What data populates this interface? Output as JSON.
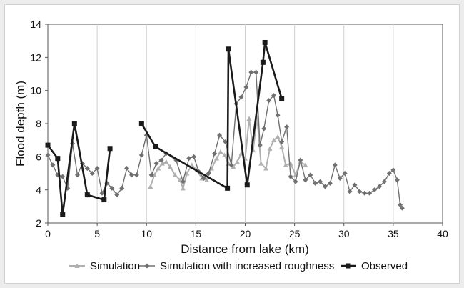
{
  "chart_data": {
    "type": "line",
    "title": "",
    "xlabel": "Distance from lake (km)",
    "ylabel": "Flood depth (m)",
    "xlim": [
      0,
      40
    ],
    "ylim": [
      2,
      14
    ],
    "xticks": [
      "0",
      "5",
      "10",
      "15",
      "20",
      "25",
      "30",
      "35",
      "40"
    ],
    "yticks": [
      "2",
      "4",
      "6",
      "8",
      "10",
      "12",
      "14"
    ],
    "grid": "vertical",
    "legend": "bottom",
    "series": [
      {
        "name": "Simulation",
        "color": "#b0b0b0",
        "marker": "triangle",
        "segments": [
          [
            [
              10.4,
              4.2
            ],
            [
              10.8,
              4.9
            ],
            [
              11.2,
              5.3
            ],
            [
              11.6,
              5.6
            ],
            [
              12.0,
              5.7
            ],
            [
              12.4,
              5.4
            ],
            [
              12.9,
              4.9
            ],
            [
              13.4,
              4.6
            ],
            [
              13.7,
              4.1
            ],
            [
              14.1,
              5.0
            ],
            [
              14.6,
              5.5
            ],
            [
              15.1,
              5.2
            ],
            [
              15.6,
              4.7
            ],
            [
              16.1,
              4.6
            ],
            [
              16.6,
              5.3
            ],
            [
              17.1,
              5.9
            ],
            [
              17.5,
              6.3
            ],
            [
              17.9,
              6.1
            ],
            [
              18.3,
              5.6
            ],
            [
              18.8,
              5.4
            ],
            [
              19.2,
              5.7
            ],
            [
              19.6,
              6.2
            ],
            [
              20.0,
              5.9
            ],
            [
              20.4,
              8.3
            ],
            [
              20.8,
              6.4
            ],
            [
              21.2,
              8.4
            ],
            [
              21.6,
              5.6
            ],
            [
              22.1,
              5.3
            ],
            [
              22.5,
              6.5
            ],
            [
              22.9,
              7.0
            ],
            [
              23.3,
              7.2
            ],
            [
              23.7,
              6.6
            ],
            [
              24.1,
              5.5
            ],
            [
              24.6,
              5.6
            ],
            [
              25.1,
              4.9
            ],
            [
              25.6,
              5.7
            ],
            [
              26.1,
              5.5
            ]
          ]
        ]
      },
      {
        "name": "Simulation with increased roughness",
        "color": "#707070",
        "marker": "diamond",
        "segments": [
          [
            [
              0.0,
              6.1
            ],
            [
              0.5,
              5.5
            ],
            [
              1.0,
              4.9
            ],
            [
              1.5,
              4.8
            ],
            [
              2.0,
              4.1
            ],
            [
              2.5,
              6.8
            ],
            [
              3.0,
              4.9
            ],
            [
              3.5,
              5.6
            ],
            [
              4.0,
              5.3
            ],
            [
              4.5,
              5.0
            ],
            [
              5.0,
              5.3
            ],
            [
              5.5,
              3.8
            ],
            [
              6.0,
              4.4
            ],
            [
              6.5,
              4.1
            ],
            [
              7.0,
              3.7
            ],
            [
              7.5,
              4.1
            ],
            [
              8.0,
              5.3
            ],
            [
              8.5,
              4.9
            ],
            [
              9.0,
              4.9
            ],
            [
              9.5,
              6.1
            ],
            [
              10.0,
              7.3
            ],
            [
              10.5,
              4.9
            ],
            [
              11.0,
              5.6
            ],
            [
              11.5,
              5.8
            ],
            [
              12.0,
              6.2
            ],
            [
              13.0,
              5.8
            ],
            [
              13.7,
              4.5
            ],
            [
              14.3,
              5.9
            ],
            [
              14.8,
              6.0
            ],
            [
              15.3,
              5.1
            ],
            [
              15.8,
              4.7
            ],
            [
              16.3,
              5.0
            ],
            [
              16.9,
              6.2
            ],
            [
              17.4,
              7.3
            ],
            [
              18.0,
              6.9
            ],
            [
              18.6,
              5.5
            ],
            [
              19.1,
              9.2
            ],
            [
              19.6,
              9.6
            ],
            [
              20.1,
              10.2
            ],
            [
              20.6,
              11.1
            ],
            [
              21.1,
              11.1
            ],
            [
              21.5,
              6.7
            ],
            [
              21.9,
              7.7
            ],
            [
              22.4,
              9.4
            ],
            [
              22.9,
              9.7
            ],
            [
              23.3,
              8.5
            ],
            [
              23.7,
              6.9
            ],
            [
              24.2,
              7.8
            ],
            [
              24.6,
              4.8
            ],
            [
              25.1,
              4.5
            ],
            [
              25.6,
              5.8
            ],
            [
              26.1,
              4.6
            ],
            [
              26.6,
              4.9
            ],
            [
              27.1,
              4.4
            ],
            [
              27.6,
              4.5
            ],
            [
              28.1,
              4.2
            ],
            [
              28.6,
              4.4
            ],
            [
              29.1,
              5.5
            ],
            [
              29.6,
              4.7
            ],
            [
              30.1,
              5.0
            ],
            [
              30.6,
              3.9
            ],
            [
              31.1,
              4.3
            ],
            [
              31.6,
              3.9
            ],
            [
              32.1,
              3.8
            ],
            [
              32.6,
              3.8
            ],
            [
              33.1,
              4.0
            ],
            [
              33.6,
              4.2
            ],
            [
              34.1,
              4.5
            ],
            [
              34.6,
              5.0
            ],
            [
              35.0,
              5.2
            ],
            [
              35.4,
              4.6
            ],
            [
              35.7,
              3.1
            ],
            [
              35.9,
              2.9
            ]
          ]
        ]
      },
      {
        "name": "Observed",
        "color": "#1a1a1a",
        "marker": "square",
        "segments": [
          [
            [
              0.0,
              6.7
            ],
            [
              1.0,
              5.9
            ],
            [
              1.5,
              2.5
            ],
            [
              2.7,
              8.0
            ],
            [
              4.0,
              3.7
            ],
            [
              5.7,
              3.4
            ],
            [
              6.3,
              6.5
            ]
          ],
          [
            [
              9.5,
              8.0
            ],
            [
              10.9,
              6.6
            ],
            [
              18.2,
              4.1
            ],
            [
              18.3,
              12.5
            ],
            [
              20.2,
              4.3
            ],
            [
              21.8,
              11.7
            ],
            [
              22.0,
              12.9
            ],
            [
              23.7,
              9.5
            ]
          ]
        ]
      }
    ]
  }
}
